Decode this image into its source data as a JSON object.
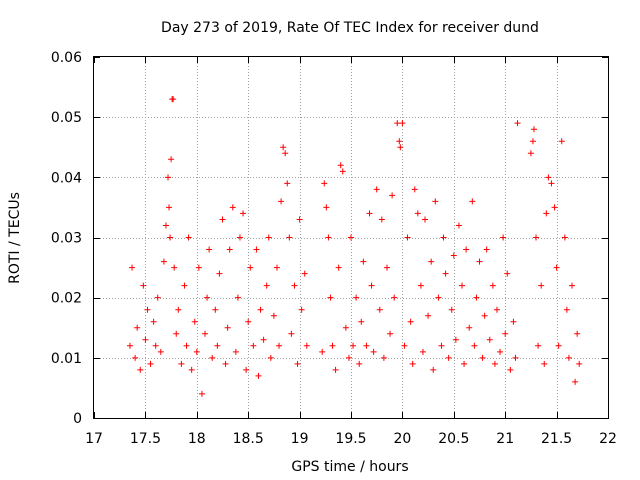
{
  "chart_data": {
    "type": "scatter",
    "title": "Day 273 of 2019, Rate Of TEC Index for receiver dund",
    "xlabel": "GPS time / hours",
    "ylabel": "ROTI / TECUs",
    "xlim": [
      17,
      22
    ],
    "ylim": [
      0,
      0.06
    ],
    "xticks": [
      17,
      17.5,
      18,
      18.5,
      19,
      19.5,
      20,
      20.5,
      21,
      21.5,
      22
    ],
    "xtick_labels": [
      "17",
      "17.5",
      "18",
      "18.5",
      "19",
      "19.5",
      "20",
      "20.5",
      "21",
      "21.5",
      "22"
    ],
    "yticks": [
      0,
      0.01,
      0.02,
      0.03,
      0.04,
      0.05,
      0.06
    ],
    "ytick_labels": [
      "0",
      "0.01",
      "0.02",
      "0.03",
      "0.04",
      "0.05",
      "0.06"
    ],
    "grid": true,
    "marker": "+",
    "marker_color": "#ff0000",
    "series": [
      {
        "x": [
          17.35,
          17.37,
          17.4,
          17.42,
          17.45,
          17.48,
          17.5,
          17.52,
          17.55,
          17.58,
          17.6,
          17.62,
          17.65,
          17.68,
          17.7,
          17.72,
          17.73,
          17.74,
          17.75,
          17.76,
          17.77,
          17.78,
          17.8,
          17.82,
          17.85,
          17.88,
          17.9,
          17.92,
          17.95,
          17.98,
          18.0,
          18.02,
          18.05,
          18.08,
          18.1,
          18.12,
          18.15,
          18.18,
          18.2,
          18.22,
          18.25,
          18.28,
          18.3,
          18.32,
          18.35,
          18.38,
          18.4,
          18.42,
          18.45,
          18.48,
          18.5,
          18.52,
          18.55,
          18.58,
          18.6,
          18.62,
          18.65,
          18.68,
          18.7,
          18.72,
          18.75,
          18.78,
          18.8,
          18.82,
          18.84,
          18.86,
          18.88,
          18.9,
          18.92,
          18.95,
          18.98,
          19.0,
          19.02,
          19.05,
          19.07,
          19.22,
          19.24,
          19.26,
          19.28,
          19.3,
          19.32,
          19.35,
          19.38,
          19.4,
          19.42,
          19.45,
          19.48,
          19.5,
          19.52,
          19.55,
          19.58,
          19.6,
          19.62,
          19.65,
          19.68,
          19.7,
          19.72,
          19.75,
          19.78,
          19.8,
          19.82,
          19.85,
          19.88,
          19.9,
          19.92,
          19.95,
          19.97,
          19.98,
          20.0,
          20.02,
          20.05,
          20.08,
          20.1,
          20.12,
          20.15,
          20.18,
          20.2,
          20.22,
          20.25,
          20.28,
          20.3,
          20.32,
          20.35,
          20.38,
          20.4,
          20.42,
          20.45,
          20.48,
          20.5,
          20.52,
          20.55,
          20.58,
          20.6,
          20.62,
          20.65,
          20.68,
          20.7,
          20.72,
          20.75,
          20.78,
          20.8,
          20.82,
          20.85,
          20.88,
          20.9,
          20.92,
          20.95,
          20.98,
          21.0,
          21.02,
          21.05,
          21.08,
          21.1,
          21.12,
          21.25,
          21.27,
          21.28,
          21.3,
          21.32,
          21.35,
          21.38,
          21.4,
          21.42,
          21.45,
          21.48,
          21.5,
          21.52,
          21.55,
          21.58,
          21.6,
          21.62,
          21.65,
          21.68,
          21.7,
          21.72
        ],
        "y": [
          0.012,
          0.025,
          0.01,
          0.015,
          0.008,
          0.022,
          0.013,
          0.018,
          0.009,
          0.016,
          0.012,
          0.02,
          0.011,
          0.026,
          0.032,
          0.04,
          0.035,
          0.03,
          0.043,
          0.053,
          0.053,
          0.025,
          0.014,
          0.018,
          0.009,
          0.022,
          0.012,
          0.03,
          0.008,
          0.016,
          0.011,
          0.025,
          0.004,
          0.014,
          0.02,
          0.028,
          0.01,
          0.018,
          0.012,
          0.024,
          0.033,
          0.009,
          0.015,
          0.028,
          0.035,
          0.011,
          0.02,
          0.03,
          0.034,
          0.008,
          0.016,
          0.025,
          0.012,
          0.028,
          0.007,
          0.018,
          0.013,
          0.022,
          0.03,
          0.01,
          0.017,
          0.025,
          0.012,
          0.036,
          0.045,
          0.044,
          0.039,
          0.03,
          0.014,
          0.022,
          0.009,
          0.033,
          0.018,
          0.024,
          0.012,
          0.011,
          0.039,
          0.035,
          0.03,
          0.02,
          0.012,
          0.008,
          0.025,
          0.042,
          0.041,
          0.015,
          0.01,
          0.03,
          0.012,
          0.02,
          0.009,
          0.016,
          0.026,
          0.012,
          0.034,
          0.022,
          0.011,
          0.038,
          0.018,
          0.033,
          0.01,
          0.025,
          0.014,
          0.037,
          0.02,
          0.049,
          0.046,
          0.045,
          0.049,
          0.012,
          0.03,
          0.016,
          0.009,
          0.038,
          0.034,
          0.022,
          0.011,
          0.033,
          0.017,
          0.026,
          0.008,
          0.036,
          0.02,
          0.012,
          0.03,
          0.024,
          0.01,
          0.018,
          0.027,
          0.013,
          0.032,
          0.022,
          0.009,
          0.028,
          0.015,
          0.036,
          0.012,
          0.02,
          0.026,
          0.01,
          0.017,
          0.028,
          0.013,
          0.022,
          0.009,
          0.018,
          0.011,
          0.03,
          0.014,
          0.024,
          0.008,
          0.016,
          0.01,
          0.049,
          0.044,
          0.046,
          0.048,
          0.03,
          0.012,
          0.022,
          0.009,
          0.034,
          0.04,
          0.039,
          0.035,
          0.025,
          0.012,
          0.046,
          0.03,
          0.018,
          0.01,
          0.022,
          0.006,
          0.014,
          0.009
        ]
      }
    ]
  }
}
